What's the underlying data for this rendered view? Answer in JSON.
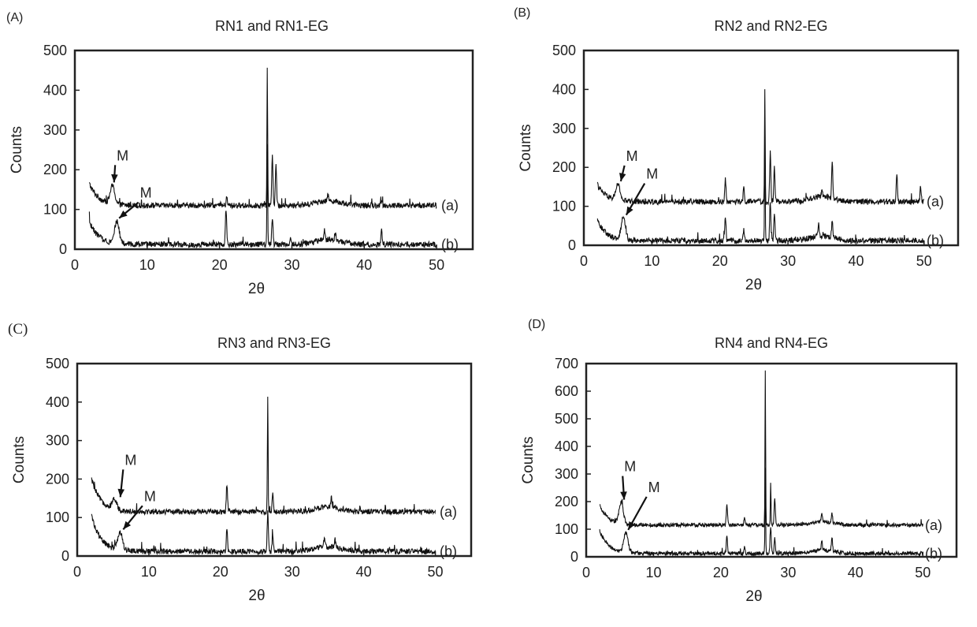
{
  "chart_data": [
    {
      "type": "line",
      "panel_label": "(A)",
      "title": "RN1 and RN1-EG",
      "xlabel": "2θ",
      "ylabel": "Counts",
      "xlim": [
        0,
        55
      ],
      "ylim": [
        0,
        500
      ],
      "xticks": [
        0,
        10,
        20,
        30,
        40,
        50
      ],
      "yticks": [
        0,
        100,
        200,
        300,
        400,
        500
      ],
      "grid": false,
      "series": [
        {
          "name": "(a)",
          "baseline": 110,
          "lowAngle": {
            "start": 170,
            "peak": 5.2,
            "peakH": 45
          },
          "peaks": [
            [
              21,
              20
            ],
            [
              26.6,
              350
            ],
            [
              27.3,
              130
            ],
            [
              27.8,
              100
            ],
            [
              35,
              15
            ],
            [
              42.4,
              8
            ]
          ]
        },
        {
          "name": "(b)",
          "baseline": 12,
          "lowAngle": {
            "start": 75,
            "peak": 5.8,
            "peakH": 55
          },
          "peaks": [
            [
              20.9,
              90
            ],
            [
              26.6,
              255
            ],
            [
              27.3,
              70
            ],
            [
              29.8,
              18
            ],
            [
              34.5,
              25
            ],
            [
              36,
              20
            ],
            [
              42.4,
              40
            ]
          ]
        }
      ],
      "annotations": [
        "M",
        "M"
      ]
    },
    {
      "type": "line",
      "panel_label": "(B)",
      "title": "RN2 and RN2-EG",
      "xlabel": "2θ",
      "ylabel": "Counts",
      "xlim": [
        0,
        55
      ],
      "ylim": [
        0,
        500
      ],
      "xticks": [
        0,
        10,
        20,
        30,
        40,
        50
      ],
      "yticks": [
        0,
        100,
        200,
        300,
        400,
        500
      ],
      "grid": false,
      "series": [
        {
          "name": "(a)",
          "baseline": 112,
          "lowAngle": {
            "start": 160,
            "peak": 5.0,
            "peakH": 40
          },
          "peaks": [
            [
              20.8,
              60
            ],
            [
              23.5,
              35
            ],
            [
              26.6,
              285
            ],
            [
              27.4,
              125
            ],
            [
              28,
              90
            ],
            [
              35,
              20
            ],
            [
              36.5,
              95
            ],
            [
              46,
              70
            ],
            [
              49.5,
              40
            ]
          ]
        },
        {
          "name": "(b)",
          "baseline": 12,
          "lowAngle": {
            "start": 70,
            "peak": 5.8,
            "peakH": 55
          },
          "peaks": [
            [
              20.8,
              65
            ],
            [
              23.5,
              30
            ],
            [
              26.6,
              270
            ],
            [
              27.4,
              100
            ],
            [
              28,
              70
            ],
            [
              34.5,
              30
            ],
            [
              36.5,
              45
            ]
          ]
        }
      ],
      "annotations": [
        "M",
        "M"
      ]
    },
    {
      "type": "line",
      "panel_label": "(C)",
      "title": "RN3 and RN3-EG",
      "xlabel": "2θ",
      "ylabel": "Counts",
      "xlim": [
        0,
        55
      ],
      "ylim": [
        0,
        500
      ],
      "xticks": [
        0,
        10,
        20,
        30,
        40,
        50
      ],
      "yticks": [
        0,
        100,
        200,
        300,
        400,
        500
      ],
      "grid": false,
      "series": [
        {
          "name": "(a)",
          "baseline": 115,
          "lowAngle": {
            "start": 205,
            "peak": 5.2,
            "peakH": 25
          },
          "peaks": [
            [
              20.9,
              70
            ],
            [
              26.6,
              300
            ],
            [
              27.3,
              50
            ],
            [
              35.5,
              25
            ],
            [
              39.5,
              12
            ]
          ]
        },
        {
          "name": "(b)",
          "baseline": 12,
          "lowAngle": {
            "start": 110,
            "peak": 6.0,
            "peakH": 45
          },
          "peaks": [
            [
              20.9,
              55
            ],
            [
              26.6,
              100
            ],
            [
              27.3,
              40
            ],
            [
              34.5,
              25
            ],
            [
              36,
              20
            ]
          ]
        }
      ],
      "annotations": [
        "M",
        "M"
      ]
    },
    {
      "type": "line",
      "panel_label": "(D)",
      "title": "RN4 and RN4-EG",
      "xlabel": "2θ",
      "ylabel": "Counts",
      "xlim": [
        0,
        55
      ],
      "ylim": [
        0,
        700
      ],
      "xticks": [
        0,
        10,
        20,
        30,
        40,
        50
      ],
      "yticks": [
        0,
        100,
        200,
        300,
        400,
        500,
        600,
        700
      ],
      "grid": false,
      "series": [
        {
          "name": "(a)",
          "baseline": 115,
          "lowAngle": {
            "start": 190,
            "peak": 5.2,
            "peakH": 75
          },
          "peaks": [
            [
              20.9,
              80
            ],
            [
              23.5,
              25
            ],
            [
              26.6,
              540
            ],
            [
              27.4,
              160
            ],
            [
              28,
              100
            ],
            [
              35,
              25
            ],
            [
              36.5,
              35
            ]
          ]
        },
        {
          "name": "(b)",
          "baseline": 12,
          "lowAngle": {
            "start": 100,
            "peak": 5.9,
            "peakH": 70
          },
          "peaks": [
            [
              20.9,
              70
            ],
            [
              23.5,
              25
            ],
            [
              26.6,
              300
            ],
            [
              27.4,
              90
            ],
            [
              28,
              60
            ],
            [
              35,
              30
            ],
            [
              36.5,
              50
            ]
          ]
        }
      ],
      "annotations": [
        "M",
        "M"
      ]
    }
  ]
}
